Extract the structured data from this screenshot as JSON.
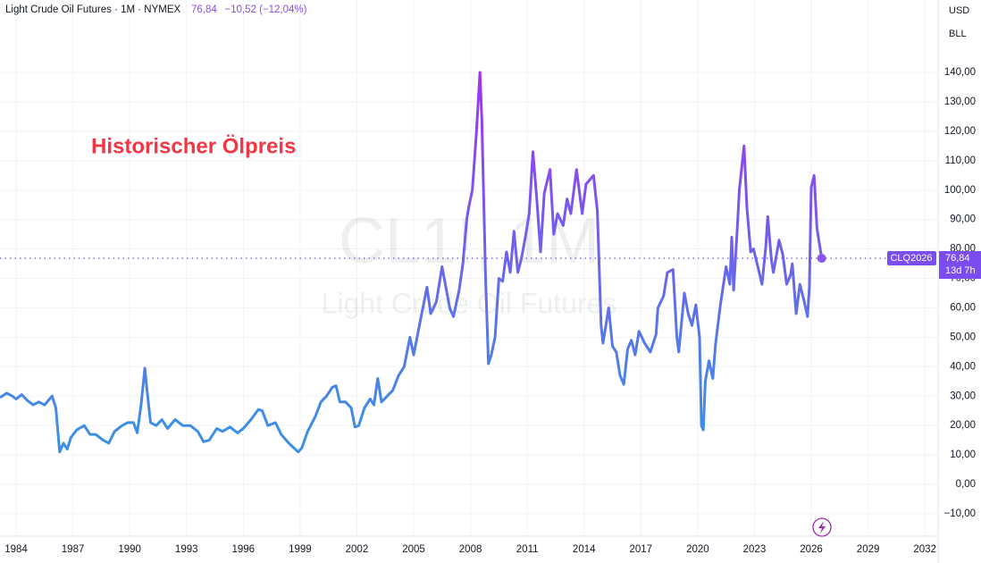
{
  "chart_data": {
    "type": "line",
    "title": "Light Crude Oil Futures · 1M · NYMEX",
    "change": "−10,52 (−12,04%)",
    "annotation": "Historischer Ölpreis",
    "watermark": [
      "CL1!, 1M",
      "Light Crude Oil Futures"
    ],
    "currency": "USD",
    "unit": "BLL",
    "symbol": "CLQ2026",
    "countdown": "13d 7h",
    "last_price": {
      "value": 76.84,
      "label": "76,84"
    },
    "colors": [
      "#3d8fe6",
      "#a033f2"
    ],
    "grid": true,
    "xlim": [
      1983.15,
      2032.7
    ],
    "ylim": [
      -17.6,
      164.6
    ],
    "xticks": [
      1984,
      1987,
      1990,
      1993,
      1996,
      1999,
      2002,
      2005,
      2008,
      2011,
      2014,
      2017,
      2020,
      2023,
      2026,
      2029,
      2032
    ],
    "yticks": [
      {
        "value": -10,
        "label": "−10,00"
      },
      {
        "value": 0,
        "label": "0,00"
      },
      {
        "value": 10,
        "label": "10,00"
      },
      {
        "value": 20,
        "label": "20,00"
      },
      {
        "value": 30,
        "label": "30,00"
      },
      {
        "value": 40,
        "label": "40,00"
      },
      {
        "value": 50,
        "label": "50,00"
      },
      {
        "value": 60,
        "label": "60,00"
      },
      {
        "value": 70,
        "label": "70,00"
      },
      {
        "value": 80,
        "label": "80,00"
      },
      {
        "value": 90,
        "label": "90,00"
      },
      {
        "value": 100,
        "label": "100,00"
      },
      {
        "value": 110,
        "label": "110,00"
      },
      {
        "value": 120,
        "label": "120,00"
      },
      {
        "value": 130,
        "label": "130,00"
      },
      {
        "value": 140,
        "label": "140,00"
      }
    ],
    "x": [
      1983.15,
      1983.5,
      1983.8,
      1984.0,
      1984.3,
      1984.6,
      1984.9,
      1985.2,
      1985.5,
      1985.9,
      1986.1,
      1986.3,
      1986.5,
      1986.7,
      1986.9,
      1987.2,
      1987.6,
      1987.9,
      1988.2,
      1988.6,
      1988.9,
      1989.2,
      1989.6,
      1989.9,
      1990.2,
      1990.4,
      1990.6,
      1990.8,
      1990.9,
      1991.1,
      1991.4,
      1991.7,
      1992.0,
      1992.4,
      1992.8,
      1993.2,
      1993.6,
      1993.9,
      1994.2,
      1994.6,
      1994.9,
      1995.3,
      1995.7,
      1996.0,
      1996.4,
      1996.8,
      1997.0,
      1997.3,
      1997.7,
      1998.0,
      1998.4,
      1998.9,
      1999.1,
      1999.4,
      1999.8,
      2000.1,
      2000.4,
      2000.7,
      2000.9,
      2001.1,
      2001.4,
      2001.7,
      2001.9,
      2002.1,
      2002.4,
      2002.7,
      2002.9,
      2003.1,
      2003.3,
      2003.6,
      2003.9,
      2004.2,
      2004.5,
      2004.8,
      2005.0,
      2005.3,
      2005.7,
      2005.9,
      2006.2,
      2006.5,
      2006.9,
      2007.1,
      2007.4,
      2007.6,
      2007.8,
      2007.9,
      2008.1,
      2008.3,
      2008.5,
      2008.6,
      2008.8,
      2008.95,
      2009.1,
      2009.3,
      2009.5,
      2009.7,
      2009.9,
      2010.1,
      2010.3,
      2010.5,
      2010.7,
      2010.9,
      2011.1,
      2011.3,
      2011.5,
      2011.7,
      2011.9,
      2012.2,
      2012.4,
      2012.6,
      2012.9,
      2013.1,
      2013.3,
      2013.6,
      2013.9,
      2014.1,
      2014.5,
      2014.7,
      2014.9,
      2015.0,
      2015.3,
      2015.5,
      2015.7,
      2015.9,
      2016.1,
      2016.3,
      2016.5,
      2016.7,
      2016.9,
      2017.2,
      2017.5,
      2017.8,
      2017.9,
      2018.2,
      2018.4,
      2018.7,
      2018.9,
      2019.0,
      2019.3,
      2019.5,
      2019.7,
      2019.9,
      2020.1,
      2020.2,
      2020.3,
      2020.4,
      2020.6,
      2020.8,
      2020.95,
      2021.2,
      2021.5,
      2021.7,
      2021.8,
      2021.9,
      2022.1,
      2022.2,
      2022.45,
      2022.6,
      2022.8,
      2022.95,
      2023.1,
      2023.4,
      2023.6,
      2023.7,
      2023.9,
      2024.0,
      2024.3,
      2024.5,
      2024.7,
      2024.9,
      2025.0,
      2025.2,
      2025.4,
      2025.6,
      2025.8,
      2025.9,
      2026.0,
      2026.15,
      2026.3,
      2026.55
    ],
    "values": [
      29.5,
      31,
      30,
      29,
      30.5,
      28.5,
      27,
      28,
      27,
      30,
      26,
      11,
      14,
      12,
      16,
      18.5,
      20,
      17,
      17,
      15,
      14,
      18,
      20,
      21,
      21,
      17.5,
      27,
      39.5,
      33,
      21,
      20,
      22,
      19,
      22,
      20,
      20,
      18,
      14.5,
      15,
      19,
      18,
      19.5,
      17.5,
      19,
      22,
      25.5,
      25,
      20,
      21,
      17,
      14,
      11,
      12.5,
      18,
      23,
      28,
      30,
      33,
      33.5,
      28,
      28,
      26,
      19.5,
      20,
      26,
      29,
      27,
      36,
      28,
      30,
      32,
      37,
      40,
      50,
      44,
      54,
      67,
      58,
      62,
      74,
      60,
      57,
      66,
      75,
      90,
      94,
      100,
      118,
      140,
      124,
      70,
      41,
      44,
      50,
      70,
      69,
      79,
      72,
      86,
      72,
      77,
      84,
      92,
      113,
      97,
      79,
      99,
      107,
      85,
      92,
      88,
      97,
      92,
      107,
      92,
      102,
      105,
      93,
      54,
      48,
      60,
      47,
      45,
      37,
      34,
      46,
      49,
      44,
      52,
      48,
      45,
      51,
      60,
      64,
      72,
      73,
      50,
      45,
      65,
      58,
      54,
      61,
      50,
      20,
      18.5,
      35,
      42,
      36,
      48,
      61,
      74,
      68,
      84,
      66,
      88,
      100,
      115,
      94,
      79,
      80,
      76,
      68,
      81,
      91,
      76,
      72,
      83,
      78,
      68,
      71,
      75,
      58,
      68,
      63,
      57,
      67,
      101,
      105,
      87,
      76.84
    ]
  }
}
